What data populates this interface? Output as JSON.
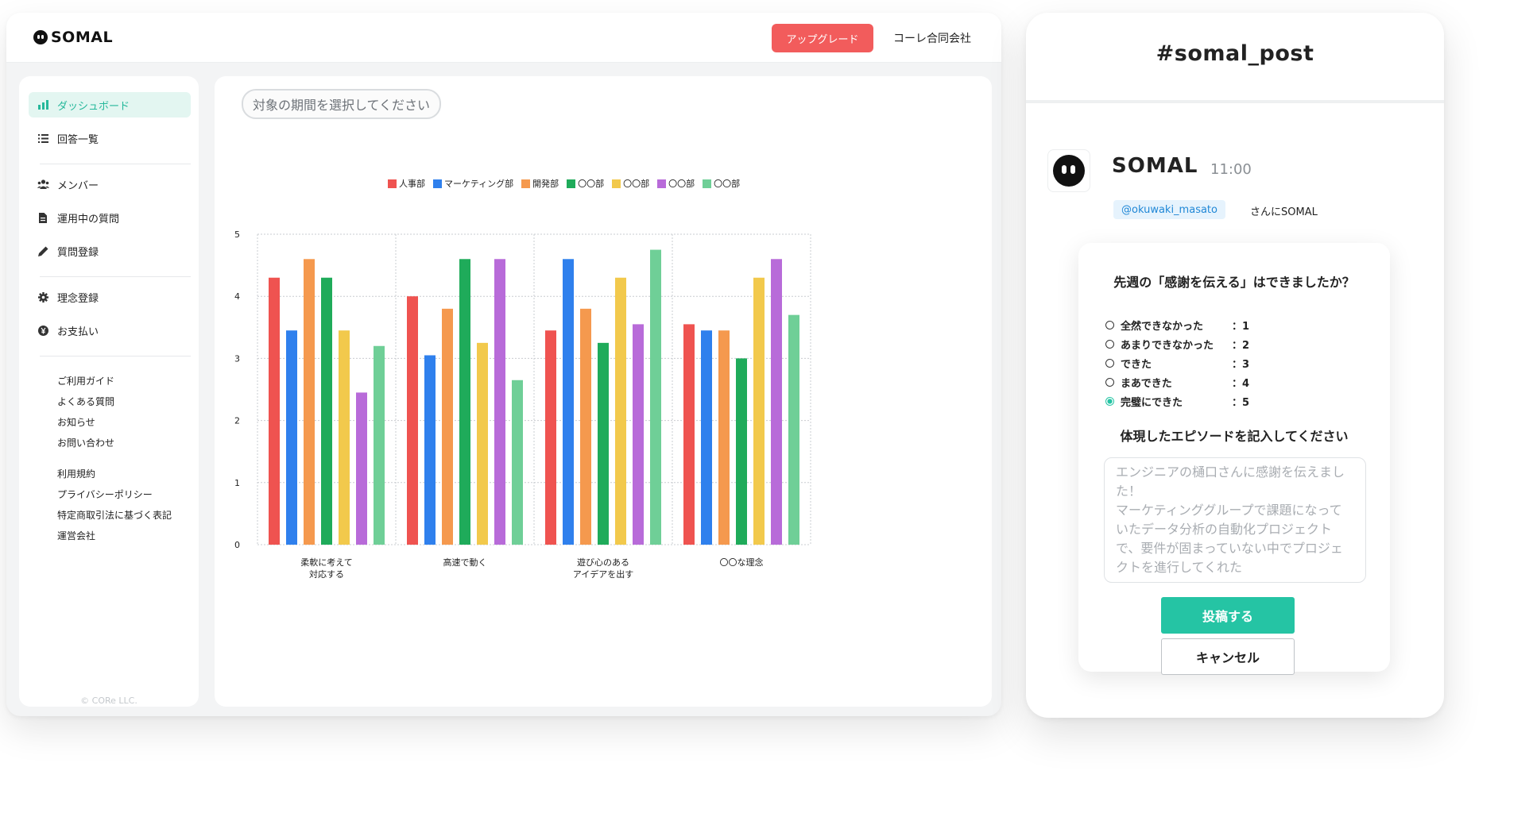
{
  "app": {
    "logo": "SOMAL",
    "upgrade_label": "アップグレード",
    "company": "コーレ合同会社",
    "period_placeholder": "対象の期間を選択してください",
    "copyright": "© CORe LLC."
  },
  "sidebar": {
    "items": [
      {
        "label": "ダッシュボード",
        "icon": "bar-chart-icon"
      },
      {
        "label": "回答一覧",
        "icon": "list-icon"
      },
      {
        "label": "メンバー",
        "icon": "members-icon"
      },
      {
        "label": "運用中の質問",
        "icon": "document-icon"
      },
      {
        "label": "質問登録",
        "icon": "pencil-icon"
      },
      {
        "label": "理念登録",
        "icon": "gear-icon"
      },
      {
        "label": "お支払い",
        "icon": "yen-icon"
      }
    ],
    "links": [
      "ご利用ガイド",
      "よくある質問",
      "お知らせ",
      "お問い合わせ",
      "利用規約",
      "プライバシーポリシー",
      "特定商取引法に基づく表記",
      "運営会社"
    ]
  },
  "chart_data": {
    "type": "bar",
    "categories": [
      [
        "柔軟に考えて",
        "対応する"
      ],
      [
        "高速で動く"
      ],
      [
        "遊び心のある",
        "アイデアを出す"
      ],
      [
        "〇〇な理念"
      ]
    ],
    "series": [
      {
        "name": "人事部",
        "color": "#ef5350",
        "values": [
          4.3,
          4.0,
          3.45,
          3.55
        ]
      },
      {
        "name": "マーケティング部",
        "color": "#2f80ed",
        "values": [
          3.45,
          3.05,
          4.6,
          3.45
        ]
      },
      {
        "name": "開発部",
        "color": "#f5994e",
        "values": [
          4.6,
          3.8,
          3.8,
          3.45
        ]
      },
      {
        "name": "〇〇部",
        "color": "#1fab5a",
        "values": [
          4.3,
          4.6,
          3.25,
          3.0
        ]
      },
      {
        "name": "〇〇部",
        "color": "#f2c94c",
        "values": [
          3.45,
          3.25,
          4.3,
          4.3
        ]
      },
      {
        "name": "〇〇部",
        "color": "#b86bd9",
        "values": [
          2.45,
          4.6,
          3.55,
          4.6
        ]
      },
      {
        "name": "〇〇部",
        "color": "#6fcf97",
        "values": [
          3.2,
          2.65,
          4.75,
          3.7
        ]
      }
    ],
    "ylim": [
      0,
      5
    ],
    "yticks": [
      "0",
      "1",
      "2",
      "3",
      "4",
      "5"
    ],
    "grid": true,
    "legend": "top-center"
  },
  "slack": {
    "channel": "#somal_post",
    "bot_name": "SOMAL",
    "time": "11:00",
    "mention": "@okuwaki_masato",
    "mention_suffix": "さんにSOMAL",
    "question": "先週の「感謝を伝える」はできましたか？",
    "options": [
      {
        "label": "全然できなかった",
        "score": "：1",
        "checked": false
      },
      {
        "label": "あまりできなかった",
        "score": "：2",
        "checked": false
      },
      {
        "label": "できた",
        "score": "：3",
        "checked": false
      },
      {
        "label": "まあできた",
        "score": "：4",
        "checked": false
      },
      {
        "label": "完璧にできた",
        "score": "：5",
        "checked": true
      }
    ],
    "episode_title": "体現したエピソードを記入してください",
    "episode_text": "エンジニアの樋口さんに感謝を伝えました！\nマーケティンググループで課題になっていたデータ分析の自動化プロジェクトで、要件が固まっていない中でプロジェクトを進行してくれた",
    "post_label": "投稿する",
    "cancel_label": "キャンセル"
  }
}
